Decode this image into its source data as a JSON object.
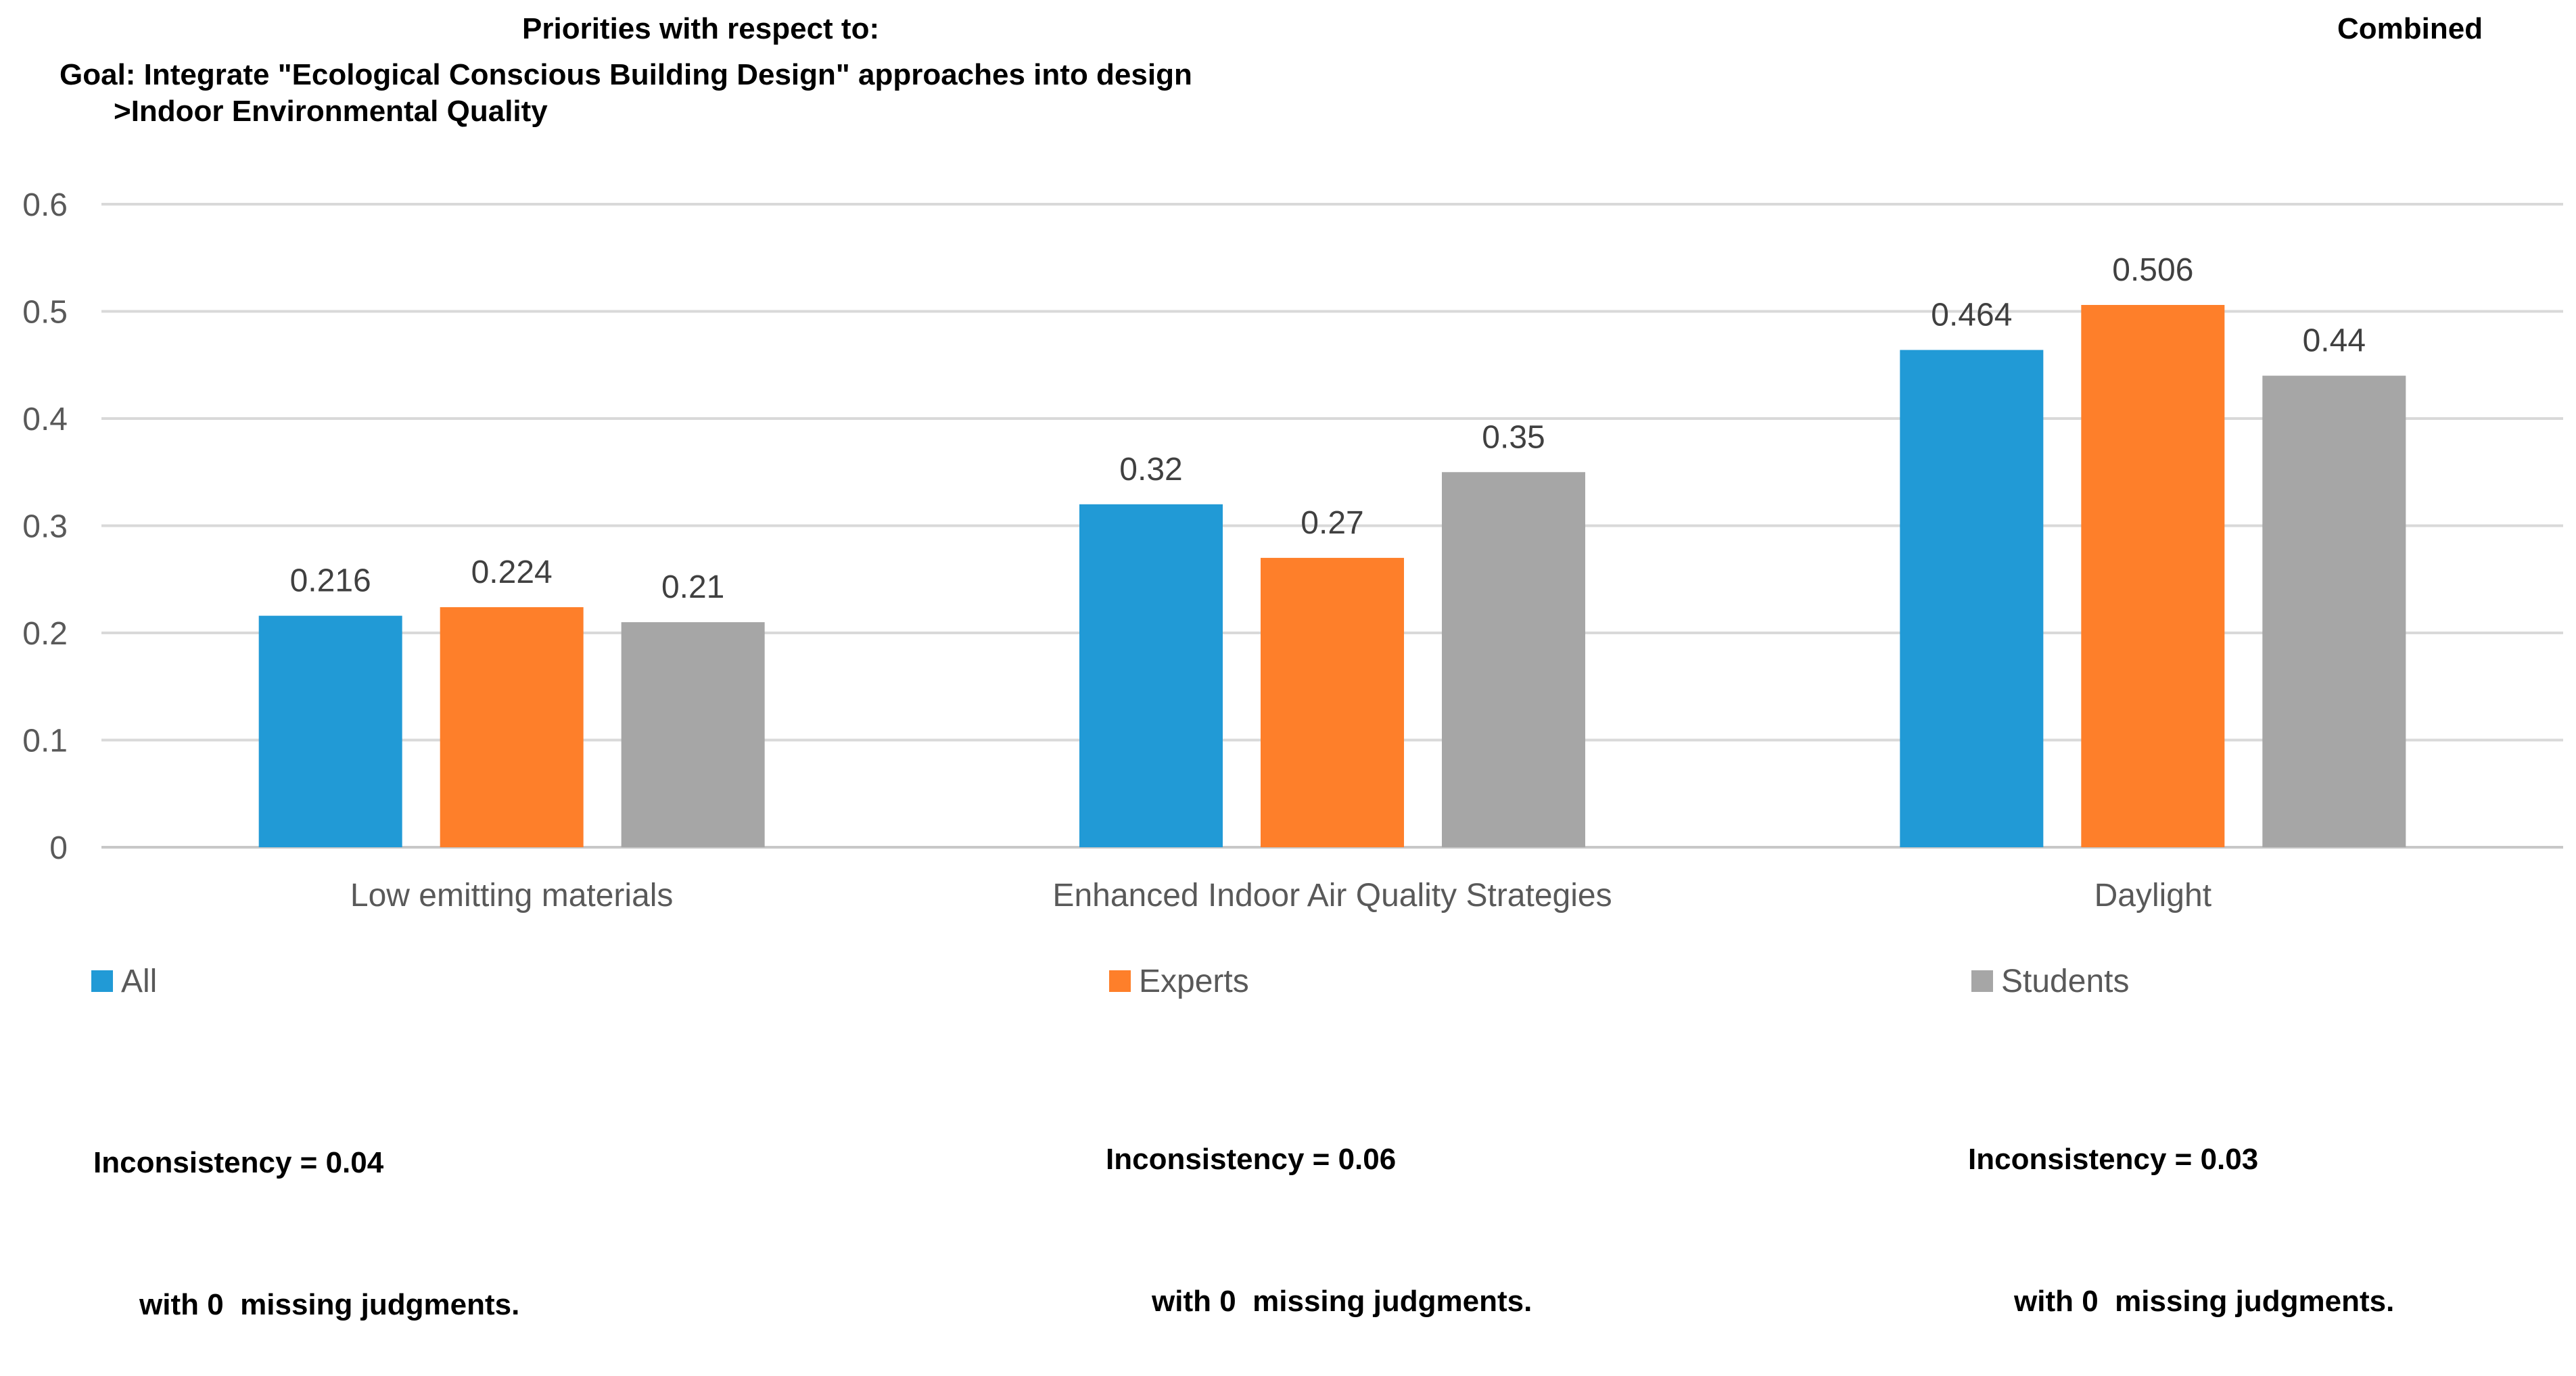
{
  "header": {
    "line1": "Priorities with respect to:",
    "line2": "Goal: Integrate \"Ecological Conscious Building Design\" approaches into design",
    "line3": ">Indoor Environmental Quality",
    "combined": "Combined"
  },
  "chart_data": {
    "type": "bar",
    "title": "",
    "xlabel": "",
    "ylabel": "",
    "ylim": [
      0,
      0.6
    ],
    "yticks": [
      0,
      0.1,
      0.2,
      0.3,
      0.4,
      0.5,
      0.6
    ],
    "ytick_labels": [
      "0",
      "0.1",
      "0.2",
      "0.3",
      "0.4",
      "0.5",
      "0.6"
    ],
    "grid": true,
    "legend_position": "bottom",
    "categories": [
      "Low emitting materials",
      "Enhanced Indoor Air Quality Strategies",
      "Daylight"
    ],
    "series": [
      {
        "name": "All",
        "color": "#219ad6",
        "values": [
          0.216,
          0.32,
          0.464
        ],
        "labels": [
          "0.216",
          "0.32",
          "0.464"
        ]
      },
      {
        "name": "Experts",
        "color": "#fe7f2a",
        "values": [
          0.224,
          0.27,
          0.506
        ],
        "labels": [
          "0.224",
          "0.27",
          "0.506"
        ]
      },
      {
        "name": "Students",
        "color": "#a6a6a6",
        "values": [
          0.21,
          0.35,
          0.44
        ],
        "labels": [
          "0.21",
          "0.35",
          "0.44"
        ]
      }
    ]
  },
  "notes": [
    {
      "inconsistency": "Inconsistency = 0.04",
      "missing": "with 0  missing judgments."
    },
    {
      "inconsistency": "Inconsistency = 0.06",
      "missing": "with 0  missing judgments."
    },
    {
      "inconsistency": "Inconsistency = 0.03",
      "missing": "with 0  missing judgments."
    }
  ]
}
